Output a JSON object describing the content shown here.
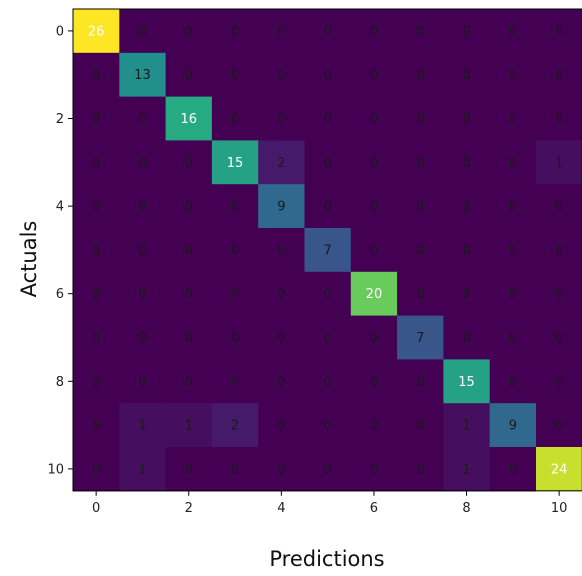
{
  "chart_data": {
    "type": "heatmap",
    "title": "",
    "xlabel": "Predictions",
    "ylabel": "Actuals",
    "x_categories": [
      0,
      1,
      2,
      3,
      4,
      5,
      6,
      7,
      8,
      9,
      10
    ],
    "y_categories": [
      0,
      1,
      2,
      3,
      4,
      5,
      6,
      7,
      8,
      9,
      10
    ],
    "x_tick_labels": [
      "0",
      "2",
      "4",
      "6",
      "8",
      "10"
    ],
    "y_tick_labels": [
      "0",
      "2",
      "4",
      "6",
      "8",
      "10"
    ],
    "colormap": "viridis",
    "value_range": [
      0,
      26
    ],
    "matrix": [
      [
        26,
        0,
        0,
        0,
        0,
        0,
        0,
        0,
        0,
        0,
        0
      ],
      [
        0,
        13,
        0,
        0,
        0,
        0,
        0,
        0,
        0,
        0,
        0
      ],
      [
        0,
        0,
        16,
        0,
        0,
        0,
        0,
        0,
        0,
        0,
        0
      ],
      [
        0,
        0,
        0,
        15,
        2,
        0,
        0,
        0,
        0,
        0,
        1
      ],
      [
        0,
        0,
        0,
        0,
        9,
        0,
        0,
        0,
        0,
        0,
        0
      ],
      [
        0,
        0,
        0,
        0,
        0,
        7,
        0,
        0,
        0,
        0,
        0
      ],
      [
        0,
        0,
        0,
        0,
        0,
        0,
        20,
        0,
        0,
        0,
        0
      ],
      [
        0,
        0,
        0,
        0,
        0,
        0,
        0,
        7,
        0,
        0,
        0
      ],
      [
        0,
        0,
        0,
        0,
        0,
        0,
        0,
        0,
        15,
        0,
        0
      ],
      [
        0,
        1,
        1,
        2,
        0,
        0,
        0,
        0,
        1,
        9,
        0
      ],
      [
        0,
        1,
        0,
        0,
        0,
        0,
        0,
        0,
        1,
        0,
        24
      ]
    ]
  }
}
